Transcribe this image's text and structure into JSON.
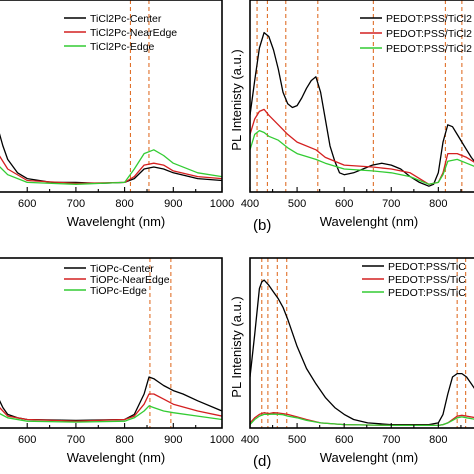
{
  "chart_data": [
    {
      "type": "line",
      "panel_label": "",
      "xlabel": "Wavelenght (nm)",
      "ylabel": "",
      "xlim": [
        540,
        1000
      ],
      "ylim": [
        0,
        1
      ],
      "x_ticks": [
        "600",
        "700",
        "800",
        "900",
        "1000"
      ],
      "legend_position": "top-right",
      "vlines": [
        812,
        850
      ],
      "series": [
        {
          "name": "TiCl2Pc-Center",
          "color": "#000000",
          "x": [
            540,
            550,
            560,
            580,
            600,
            650,
            700,
            750,
            800,
            820,
            840,
            860,
            880,
            900,
            950,
            1000
          ],
          "y": [
            0.33,
            0.24,
            0.17,
            0.1,
            0.07,
            0.05,
            0.05,
            0.045,
            0.05,
            0.07,
            0.12,
            0.13,
            0.12,
            0.1,
            0.07,
            0.06
          ]
        },
        {
          "name": "TiCl2Pc-NearEdge",
          "color": "#d42020",
          "x": [
            540,
            560,
            600,
            700,
            800,
            820,
            840,
            860,
            880,
            900,
            950,
            1000
          ],
          "y": [
            0.2,
            0.12,
            0.06,
            0.045,
            0.05,
            0.08,
            0.14,
            0.15,
            0.14,
            0.11,
            0.08,
            0.07
          ]
        },
        {
          "name": "TiCl2Pc-Edge",
          "color": "#33cc33",
          "x": [
            540,
            560,
            600,
            700,
            800,
            820,
            840,
            860,
            880,
            900,
            950,
            1000
          ],
          "y": [
            0.14,
            0.09,
            0.05,
            0.04,
            0.05,
            0.12,
            0.2,
            0.22,
            0.19,
            0.15,
            0.1,
            0.08
          ]
        }
      ]
    },
    {
      "type": "line",
      "panel_label": "(b)",
      "xlabel": "Wavelenght (nm)",
      "ylabel": "PL Intenisty (a.u.)",
      "xlim": [
        400,
        880
      ],
      "ylim": [
        0,
        1
      ],
      "x_ticks": [
        "400",
        "500",
        "600",
        "700",
        "800"
      ],
      "legend_position": "top-right",
      "vlines": [
        415,
        437,
        476,
        544,
        662,
        815,
        850
      ],
      "series": [
        {
          "name": "PEDOT:PSS/TiCl2",
          "color": "#000000",
          "x": [
            400,
            410,
            420,
            430,
            440,
            450,
            460,
            470,
            480,
            490,
            500,
            510,
            520,
            530,
            540,
            550,
            560,
            570,
            580,
            590,
            600,
            620,
            640,
            660,
            680,
            700,
            720,
            740,
            760,
            780,
            790,
            800,
            810,
            820,
            830,
            840,
            850,
            860,
            870,
            880
          ],
          "y": [
            0.4,
            0.58,
            0.75,
            0.83,
            0.81,
            0.74,
            0.64,
            0.52,
            0.46,
            0.44,
            0.45,
            0.49,
            0.54,
            0.58,
            0.6,
            0.52,
            0.38,
            0.24,
            0.16,
            0.1,
            0.09,
            0.1,
            0.12,
            0.14,
            0.15,
            0.14,
            0.12,
            0.08,
            0.05,
            0.03,
            0.04,
            0.1,
            0.26,
            0.35,
            0.34,
            0.3,
            0.26,
            0.22,
            0.18,
            0.15
          ]
        },
        {
          "name": "PEDOT:PSS/TiCl2",
          "color": "#d42020",
          "x": [
            400,
            410,
            420,
            430,
            440,
            460,
            480,
            500,
            540,
            560,
            600,
            660,
            700,
            740,
            780,
            800,
            810,
            820,
            840,
            860,
            880
          ],
          "y": [
            0.3,
            0.38,
            0.42,
            0.43,
            0.4,
            0.35,
            0.3,
            0.26,
            0.22,
            0.18,
            0.14,
            0.13,
            0.12,
            0.1,
            0.04,
            0.05,
            0.1,
            0.2,
            0.2,
            0.18,
            0.15
          ]
        },
        {
          "name": "PEDOT:PSS/TiCl2",
          "color": "#33cc33",
          "x": [
            400,
            410,
            420,
            430,
            440,
            460,
            480,
            500,
            540,
            560,
            600,
            660,
            700,
            740,
            780,
            800,
            810,
            820,
            840,
            860,
            880
          ],
          "y": [
            0.22,
            0.3,
            0.32,
            0.31,
            0.29,
            0.27,
            0.23,
            0.2,
            0.17,
            0.15,
            0.12,
            0.11,
            0.1,
            0.08,
            0.04,
            0.05,
            0.09,
            0.16,
            0.17,
            0.15,
            0.13
          ]
        }
      ]
    },
    {
      "type": "line",
      "panel_label": "",
      "xlabel": "Wavelenght (nm)",
      "ylabel": "",
      "xlim": [
        540,
        1000
      ],
      "ylim": [
        0,
        1
      ],
      "x_ticks": [
        "600",
        "700",
        "800",
        "900",
        "1000"
      ],
      "legend_position": "top-right",
      "vlines": [
        852,
        895
      ],
      "series": [
        {
          "name": "TiOPc-Center",
          "color": "#000000",
          "x": [
            540,
            550,
            560,
            580,
            600,
            700,
            800,
            820,
            840,
            850,
            860,
            870,
            880,
            900,
            920,
            950,
            1000
          ],
          "y": [
            0.18,
            0.12,
            0.08,
            0.06,
            0.05,
            0.045,
            0.05,
            0.08,
            0.2,
            0.3,
            0.29,
            0.27,
            0.25,
            0.22,
            0.2,
            0.16,
            0.1
          ]
        },
        {
          "name": "TiOPc-NearEdge",
          "color": "#d42020",
          "x": [
            540,
            560,
            600,
            700,
            800,
            820,
            840,
            850,
            860,
            880,
            900,
            950,
            1000
          ],
          "y": [
            0.13,
            0.07,
            0.05,
            0.04,
            0.05,
            0.07,
            0.14,
            0.2,
            0.2,
            0.17,
            0.14,
            0.1,
            0.07
          ]
        },
        {
          "name": "TiOPc-Edge",
          "color": "#33cc33",
          "x": [
            540,
            560,
            600,
            700,
            800,
            820,
            840,
            850,
            860,
            880,
            900,
            950,
            1000
          ],
          "y": [
            0.09,
            0.06,
            0.04,
            0.035,
            0.04,
            0.06,
            0.1,
            0.13,
            0.12,
            0.1,
            0.09,
            0.07,
            0.05
          ]
        }
      ]
    },
    {
      "type": "line",
      "panel_label": "(d)",
      "xlabel": "Wavelenght (nm)",
      "ylabel": "PL Intenisty (a.u.)",
      "xlim": [
        400,
        880
      ],
      "ylim": [
        0,
        1
      ],
      "x_ticks": [
        "400",
        "500",
        "600",
        "700",
        "800"
      ],
      "legend_position": "top-right",
      "vlines": [
        425,
        438,
        458,
        478,
        840,
        858
      ],
      "series": [
        {
          "name": "PEDOT:PSS/TiC",
          "color": "#000000",
          "x": [
            400,
            410,
            420,
            425,
            430,
            440,
            450,
            460,
            470,
            480,
            490,
            500,
            520,
            540,
            560,
            580,
            600,
            620,
            650,
            700,
            750,
            780,
            800,
            810,
            820,
            830,
            840,
            850,
            860,
            870,
            880
          ],
          "y": [
            0.3,
            0.55,
            0.82,
            0.86,
            0.87,
            0.84,
            0.8,
            0.76,
            0.71,
            0.64,
            0.56,
            0.48,
            0.35,
            0.26,
            0.18,
            0.12,
            0.08,
            0.05,
            0.03,
            0.02,
            0.02,
            0.02,
            0.03,
            0.08,
            0.2,
            0.3,
            0.32,
            0.32,
            0.3,
            0.26,
            0.22
          ]
        },
        {
          "name": "PEDOT:PSS/TiC",
          "color": "#d42020",
          "x": [
            400,
            410,
            420,
            430,
            440,
            450,
            460,
            470,
            480,
            500,
            520,
            550,
            600,
            700,
            800,
            810,
            820,
            830,
            840,
            850,
            860,
            880
          ],
          "y": [
            0.03,
            0.06,
            0.08,
            0.09,
            0.085,
            0.09,
            0.088,
            0.085,
            0.08,
            0.065,
            0.05,
            0.03,
            0.02,
            0.015,
            0.015,
            0.02,
            0.03,
            0.05,
            0.07,
            0.075,
            0.07,
            0.06
          ]
        },
        {
          "name": "PEDOT:PSS/TiC",
          "color": "#33cc33",
          "x": [
            400,
            410,
            420,
            430,
            440,
            450,
            460,
            470,
            480,
            500,
            520,
            550,
            600,
            700,
            800,
            810,
            820,
            830,
            840,
            850,
            860,
            880
          ],
          "y": [
            0.02,
            0.05,
            0.07,
            0.08,
            0.08,
            0.082,
            0.08,
            0.078,
            0.07,
            0.06,
            0.045,
            0.03,
            0.02,
            0.015,
            0.015,
            0.02,
            0.03,
            0.045,
            0.06,
            0.065,
            0.06,
            0.05
          ]
        }
      ]
    }
  ]
}
